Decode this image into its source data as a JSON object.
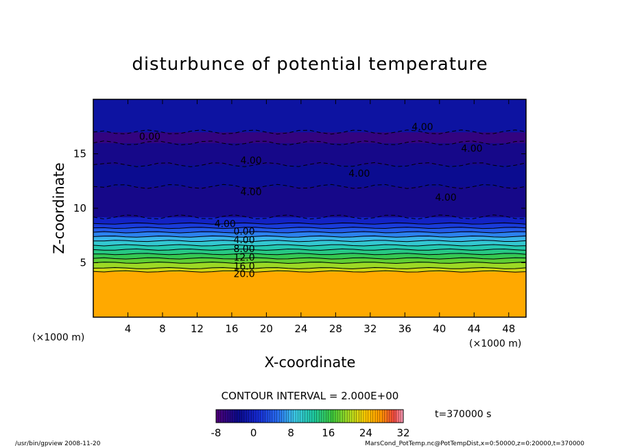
{
  "chart_data": {
    "type": "contour",
    "title": "disturbunce of potential temperature",
    "xlabel": "X-coordinate",
    "ylabel": "Z-coordinate",
    "x_unit": "(×1000 m)",
    "y_unit": "(×1000 m)",
    "xlim": [
      0,
      50
    ],
    "ylim": [
      0,
      20
    ],
    "x_ticks": [
      4,
      8,
      12,
      16,
      20,
      24,
      28,
      32,
      36,
      40,
      44,
      48
    ],
    "y_ticks": [
      5,
      10,
      15
    ],
    "contour_interval_label": "CONTOUR INTERVAL = 2.000E+00",
    "time_label": "t=370000 s",
    "colorbar": {
      "min": -8,
      "max": 32,
      "ticks": [
        -8,
        0,
        8,
        16,
        24,
        32
      ]
    },
    "bands": [
      {
        "z_from": 0,
        "z_to": 4.2,
        "value": 26
      },
      {
        "z_from": 4.2,
        "z_to": 4.5,
        "value": 22
      },
      {
        "z_from": 4.5,
        "z_to": 5.0,
        "value": 20
      },
      {
        "z_from": 5.0,
        "z_to": 5.4,
        "value": 18
      },
      {
        "z_from": 5.4,
        "z_to": 5.8,
        "value": 16
      },
      {
        "z_from": 5.8,
        "z_to": 6.2,
        "value": 14
      },
      {
        "z_from": 6.2,
        "z_to": 6.6,
        "value": 12
      },
      {
        "z_from": 6.6,
        "z_to": 7.0,
        "value": 10
      },
      {
        "z_from": 7.0,
        "z_to": 7.4,
        "value": 8
      },
      {
        "z_from": 7.4,
        "z_to": 7.8,
        "value": 6
      },
      {
        "z_from": 7.8,
        "z_to": 8.2,
        "value": 4
      },
      {
        "z_from": 8.2,
        "z_to": 8.6,
        "value": 2
      },
      {
        "z_from": 8.6,
        "z_to": 9.2,
        "value": 0
      },
      {
        "z_from": 9.2,
        "z_to": 12.0,
        "value": -4
      },
      {
        "z_from": 12.0,
        "z_to": 14.0,
        "value": -3
      },
      {
        "z_from": 14.0,
        "z_to": 16.0,
        "value": -4
      },
      {
        "z_from": 16.0,
        "z_to": 17.0,
        "value": -6
      },
      {
        "z_from": 17.0,
        "z_to": 20.0,
        "value": -2
      }
    ],
    "contour_labels": [
      {
        "text": "0.00",
        "x": 5.3,
        "z": 16.6
      },
      {
        "text": "4.00",
        "x": 36.8,
        "z": 17.5
      },
      {
        "text": "4.00",
        "x": 42.5,
        "z": 15.5
      },
      {
        "text": "4.00",
        "x": 17.0,
        "z": 14.4
      },
      {
        "text": "4.00",
        "x": 29.5,
        "z": 13.2
      },
      {
        "text": "4.00",
        "x": 17.0,
        "z": 11.5
      },
      {
        "text": "4.00",
        "x": 39.5,
        "z": 11.0
      },
      {
        "text": "4.00",
        "x": 14.0,
        "z": 8.6
      },
      {
        "text": "0.00",
        "x": 16.2,
        "z": 7.9
      },
      {
        "text": "4.00",
        "x": 16.2,
        "z": 7.1
      },
      {
        "text": "8.00",
        "x": 16.2,
        "z": 6.3
      },
      {
        "text": "12.0",
        "x": 16.2,
        "z": 5.5
      },
      {
        "text": "16.0",
        "x": 16.2,
        "z": 4.7
      },
      {
        "text": "20.0",
        "x": 16.2,
        "z": 4.0
      }
    ]
  },
  "footer": {
    "left": "/usr/bin/gpview   2008-11-20",
    "right": "MarsCond_PotTemp.nc@PotTempDist,x=0:50000,z=0:20000,t=370000"
  }
}
